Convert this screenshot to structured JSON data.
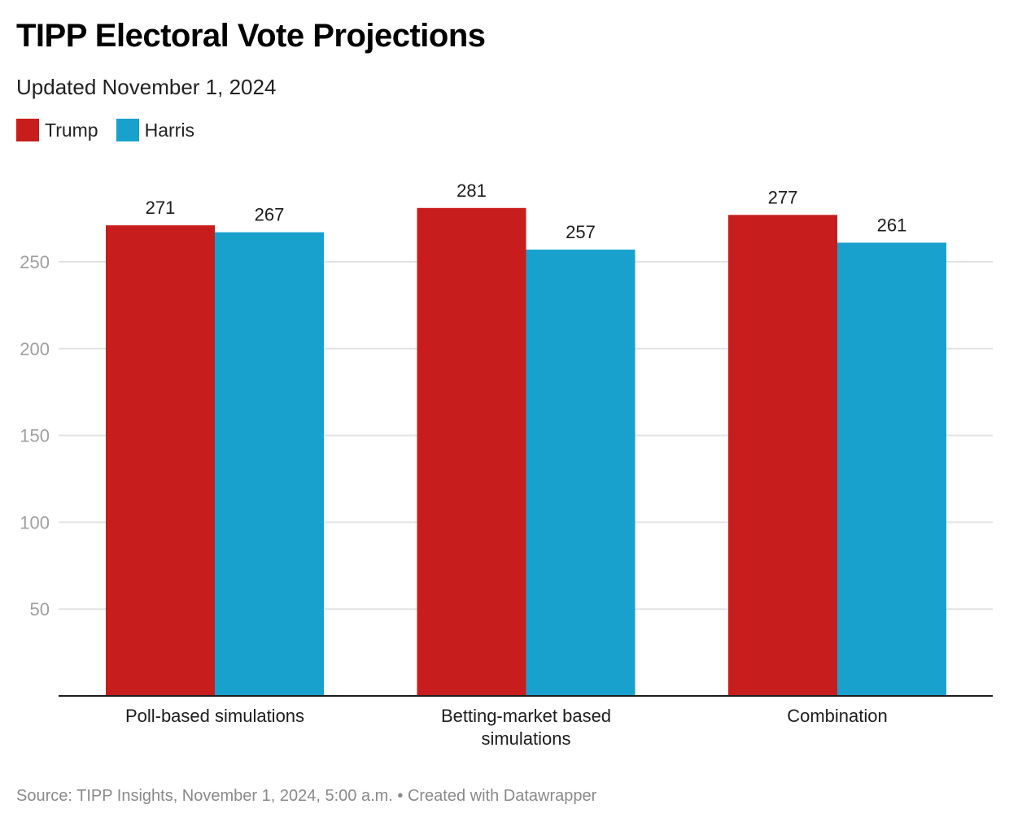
{
  "header": {
    "title": "TIPP Electoral Vote Projections",
    "subtitle": "Updated November 1, 2024"
  },
  "legend": [
    {
      "name": "Trump",
      "color": "#c71e1d"
    },
    {
      "name": "Harris",
      "color": "#18a1cd"
    }
  ],
  "footer": {
    "source": "Source: TIPP Insights, November 1, 2024, 5:00 a.m. • Created with Datawrapper"
  },
  "chart_data": {
    "type": "bar",
    "title": "TIPP Electoral Vote Projections",
    "subtitle": "Updated November 1, 2024",
    "xlabel": "",
    "ylabel": "",
    "categories": [
      [
        "Poll-based simulations"
      ],
      [
        "Betting-market based",
        "simulations"
      ],
      [
        "Combination"
      ]
    ],
    "series": [
      {
        "name": "Trump",
        "color": "#c71e1d",
        "values": [
          271,
          281,
          277
        ]
      },
      {
        "name": "Harris",
        "color": "#18a1cd",
        "values": [
          267,
          257,
          261
        ]
      }
    ],
    "yticks": [
      50,
      100,
      150,
      200,
      250
    ],
    "ylim": [
      0,
      290
    ],
    "grid": true,
    "legend_position": "top-left",
    "data_labels": true
  }
}
